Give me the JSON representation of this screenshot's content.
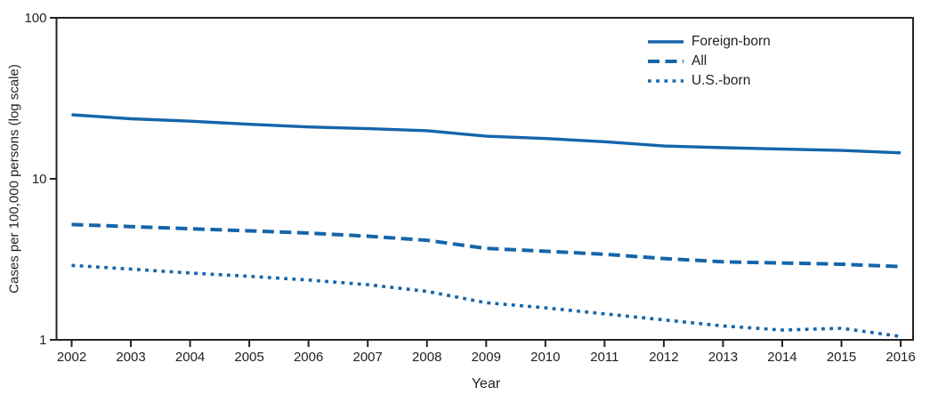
{
  "figure": {
    "y_axis_label": "Cases per 100,000 persons (log scale)",
    "x_axis_label": "Year"
  },
  "colors": {
    "series_blue": "#1565ab",
    "axis": "#262223",
    "text": "#231f20",
    "background": "#ffffff"
  },
  "chart_data": {
    "type": "line",
    "x": [
      2002,
      2003,
      2004,
      2005,
      2006,
      2007,
      2008,
      2009,
      2010,
      2011,
      2012,
      2013,
      2014,
      2015,
      2016
    ],
    "series": [
      {
        "name": "Foreign-born",
        "line_style": "solid",
        "values": [
          25.0,
          23.6,
          22.8,
          21.8,
          21.0,
          20.5,
          19.9,
          18.4,
          17.8,
          17.0,
          16.0,
          15.6,
          15.3,
          15.0,
          14.5
        ]
      },
      {
        "name": "All",
        "line_style": "dashed",
        "values": [
          5.2,
          5.05,
          4.9,
          4.75,
          4.6,
          4.4,
          4.15,
          3.7,
          3.55,
          3.4,
          3.2,
          3.05,
          3.0,
          2.95,
          2.85
        ]
      },
      {
        "name": "U.S.-born",
        "line_style": "dotted",
        "values": [
          2.9,
          2.75,
          2.6,
          2.48,
          2.35,
          2.2,
          2.0,
          1.7,
          1.58,
          1.45,
          1.33,
          1.22,
          1.15,
          1.18,
          1.05
        ]
      }
    ],
    "yscale": "log",
    "ylim": [
      1,
      100
    ],
    "yticks": [
      100,
      10,
      1
    ],
    "xlabel": "Year",
    "ylabel": "Cases per 100,000 persons (log scale)",
    "legend_position": "top-right",
    "grid": false
  }
}
